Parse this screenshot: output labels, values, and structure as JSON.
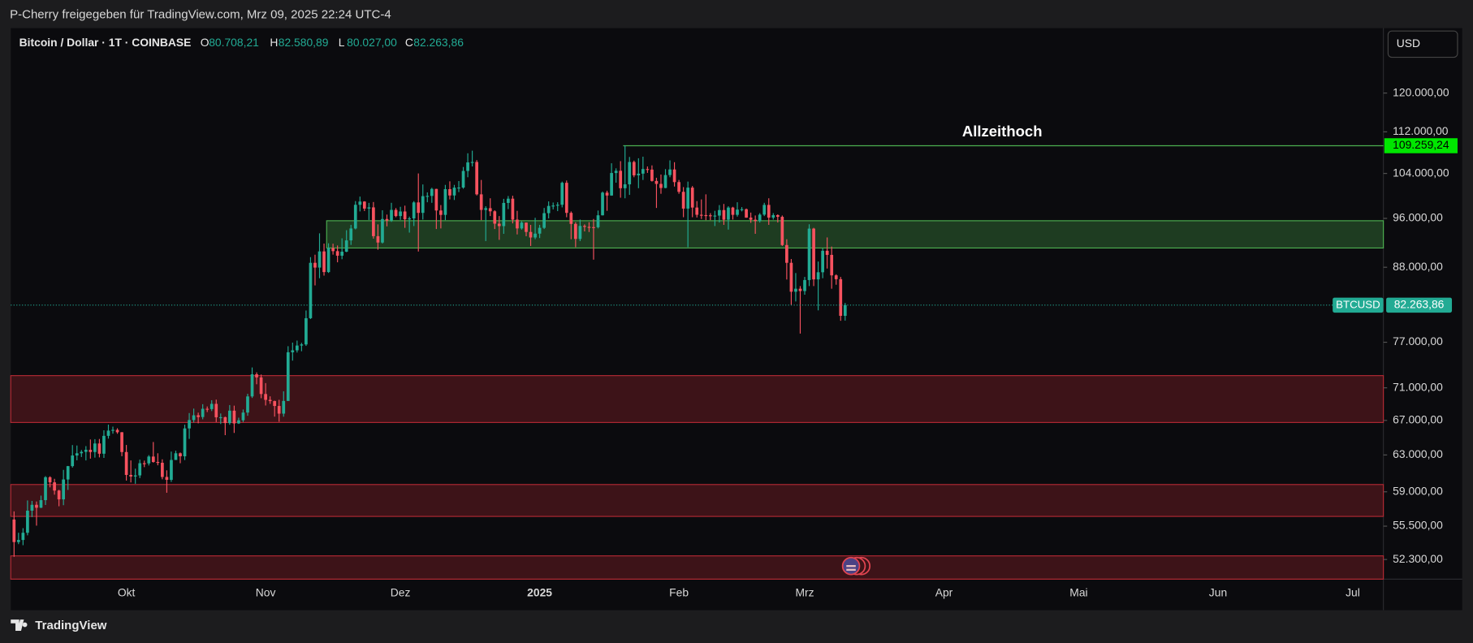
{
  "chart_data": {
    "type": "candlestick",
    "subtitle": "P-Cherry freigegeben für TradingView.com, Mrz 09, 2025 22:24 UTC-4",
    "title": "Bitcoin / Dollar · 1T · COINBASE",
    "ohlc": [
      {
        "key": "O",
        "label": "80.708,21"
      },
      {
        "key": "H",
        "label": "82.580,89"
      },
      {
        "key": "L",
        "label": "80.027,00"
      },
      {
        "key": "C",
        "label": "82.263,86"
      }
    ],
    "currency": "USD",
    "brand": "TradingView",
    "up_color": "#22ab94",
    "down_color": "#f7525f",
    "log_scale": true,
    "grid": false,
    "ylim": [
      50500,
      134700
    ],
    "yticks": [
      {
        "value": 120000,
        "label": "120.000,00"
      },
      {
        "value": 112000,
        "label": "112.000,00"
      },
      {
        "value": 104000,
        "label": "104.000,00"
      },
      {
        "value": 96000,
        "label": "96.000,00"
      },
      {
        "value": 88000,
        "label": "88.000,00"
      },
      {
        "value": 77000,
        "label": "77.000,00"
      },
      {
        "value": 71000,
        "label": "71.000,00"
      },
      {
        "value": 67000,
        "label": "67.000,00"
      },
      {
        "value": 63000,
        "label": "63.000,00"
      },
      {
        "value": 59000,
        "label": "59.000,00"
      },
      {
        "value": 55500,
        "label": "55.500,00"
      },
      {
        "value": 52300,
        "label": "52.300,00"
      }
    ],
    "x_labels": [
      "Okt",
      "Nov",
      "Dez",
      "2025",
      "Feb",
      "Mrz",
      "Apr",
      "Mai",
      "Jun",
      "Jul"
    ],
    "zones": [
      {
        "range": [
          91070,
          95600
        ],
        "color": "#4caf50"
      },
      {
        "range": [
          66750,
          72560
        ],
        "color": "#b22833"
      },
      {
        "range": [
          56470,
          59770
        ],
        "color": "#b22833"
      },
      {
        "range": [
          50500,
          52640
        ],
        "color": "#b22833"
      }
    ],
    "ath": {
      "value": 109259.24,
      "label": "109.259,24",
      "text": "Allzeithoch",
      "color": "#4caf50"
    },
    "last_price": {
      "value": 82263.86,
      "label": "82.263,86",
      "name": "BTCUSD"
    },
    "candles": [
      [
        56160,
        56980,
        52550,
        53950
      ],
      [
        53950,
        54850,
        53750,
        54150
      ],
      [
        54150,
        55300,
        53650,
        54850
      ],
      [
        54850,
        58100,
        54600,
        57050
      ],
      [
        57050,
        58050,
        56400,
        57650
      ],
      [
        57650,
        57990,
        55550,
        57350
      ],
      [
        57350,
        58600,
        57320,
        58130
      ],
      [
        58130,
        60670,
        57630,
        60550
      ],
      [
        60550,
        60650,
        59470,
        60000
      ],
      [
        60000,
        60380,
        58700,
        59130
      ],
      [
        59130,
        59210,
        57500,
        58210
      ],
      [
        58210,
        61350,
        57610,
        60310
      ],
      [
        60310,
        61780,
        59200,
        61760
      ],
      [
        61760,
        64120,
        61600,
        62940
      ],
      [
        62940,
        64070,
        62400,
        63190
      ],
      [
        63190,
        63560,
        62770,
        63350
      ],
      [
        63350,
        64000,
        62390,
        63580
      ],
      [
        63580,
        64760,
        62590,
        63330
      ],
      [
        63330,
        64800,
        62700,
        64300
      ],
      [
        64300,
        64820,
        62730,
        63140
      ],
      [
        63140,
        65830,
        62670,
        65180
      ],
      [
        65180,
        66500,
        64860,
        65790
      ],
      [
        65790,
        66260,
        65430,
        65880
      ],
      [
        65880,
        66070,
        65420,
        65600
      ],
      [
        65600,
        65620,
        62860,
        63330
      ],
      [
        63330,
        64130,
        60190,
        60800
      ],
      [
        60800,
        62390,
        59990,
        60630
      ],
      [
        60630,
        61480,
        59850,
        60750
      ],
      [
        60750,
        62480,
        60460,
        62080
      ],
      [
        62080,
        62370,
        61650,
        62060
      ],
      [
        62060,
        62980,
        61830,
        62820
      ],
      [
        62820,
        64470,
        62140,
        62220
      ],
      [
        62220,
        63190,
        61850,
        62130
      ],
      [
        62130,
        62510,
        60330,
        60580
      ],
      [
        60580,
        61300,
        58900,
        60270
      ],
      [
        60270,
        63380,
        60050,
        62440
      ],
      [
        62440,
        63480,
        62440,
        63190
      ],
      [
        63190,
        63280,
        62080,
        62850
      ],
      [
        62850,
        66490,
        62430,
        66050
      ],
      [
        66050,
        67880,
        64830,
        67040
      ],
      [
        67040,
        68420,
        66750,
        67610
      ],
      [
        67610,
        67930,
        66650,
        67400
      ],
      [
        67400,
        68960,
        67130,
        68400
      ],
      [
        68400,
        68680,
        68000,
        68360
      ],
      [
        68360,
        69450,
        68120,
        69000
      ],
      [
        69000,
        69520,
        66800,
        67370
      ],
      [
        67370,
        67830,
        66570,
        67380
      ],
      [
        67380,
        67450,
        65260,
        66680
      ],
      [
        66680,
        68850,
        66480,
        68170
      ],
      [
        68170,
        68780,
        65520,
        66640
      ],
      [
        66640,
        67320,
        66580,
        67010
      ],
      [
        67010,
        68310,
        66800,
        67940
      ],
      [
        67940,
        70250,
        67550,
        69920
      ],
      [
        69920,
        73620,
        69730,
        72730
      ],
      [
        72730,
        72980,
        71450,
        72330
      ],
      [
        72330,
        72700,
        69700,
        70220
      ],
      [
        70220,
        71600,
        68800,
        69490
      ],
      [
        69490,
        69930,
        69000,
        69340
      ],
      [
        69340,
        69400,
        67450,
        68740
      ],
      [
        68740,
        69500,
        66840,
        67810
      ],
      [
        67810,
        70560,
        67440,
        69360
      ],
      [
        69360,
        76460,
        69360,
        75640
      ],
      [
        75640,
        76950,
        74520,
        75900
      ],
      [
        75900,
        77230,
        75600,
        76550
      ],
      [
        76550,
        76920,
        75780,
        76700
      ],
      [
        76700,
        81480,
        76500,
        80370
      ],
      [
        80370,
        89600,
        80250,
        88700
      ],
      [
        88700,
        89990,
        85200,
        87950
      ],
      [
        87950,
        93480,
        86300,
        90520
      ],
      [
        90520,
        91790,
        86700,
        87250
      ],
      [
        87250,
        91840,
        87120,
        91060
      ],
      [
        91060,
        91770,
        90000,
        90560
      ],
      [
        90560,
        91480,
        88780,
        89830
      ],
      [
        89830,
        92650,
        89270,
        90470
      ],
      [
        90470,
        94000,
        90400,
        92310
      ],
      [
        92310,
        94900,
        91570,
        94290
      ],
      [
        94290,
        99000,
        94140,
        98350
      ],
      [
        98350,
        99800,
        97200,
        98920
      ],
      [
        98920,
        98980,
        97260,
        97690
      ],
      [
        97690,
        98690,
        95730,
        97900
      ],
      [
        97900,
        98840,
        92600,
        93010
      ],
      [
        93010,
        94980,
        90800,
        91960
      ],
      [
        91960,
        97400,
        91800,
        95890
      ],
      [
        95890,
        96650,
        94650,
        95640
      ],
      [
        95640,
        98700,
        95400,
        97460
      ],
      [
        97460,
        97780,
        96200,
        96400
      ],
      [
        96400,
        98000,
        95750,
        97190
      ],
      [
        97190,
        98200,
        94400,
        95850
      ],
      [
        95850,
        96300,
        93600,
        96000
      ],
      [
        96000,
        99000,
        94700,
        98770
      ],
      [
        98770,
        104000,
        90500,
        96950
      ],
      [
        96950,
        101980,
        95800,
        99880
      ],
      [
        99880,
        100550,
        98800,
        99920
      ],
      [
        99920,
        101380,
        98700,
        101170
      ],
      [
        101170,
        101200,
        94200,
        97360
      ],
      [
        97360,
        98300,
        94300,
        96600
      ],
      [
        96600,
        101900,
        95700,
        101130
      ],
      [
        101130,
        102550,
        99300,
        100000
      ],
      [
        100000,
        101900,
        99200,
        101400
      ],
      [
        101400,
        102600,
        100600,
        101420
      ],
      [
        101420,
        105200,
        101200,
        104460
      ],
      [
        104460,
        107800,
        103300,
        106060
      ],
      [
        106060,
        108300,
        105300,
        106140
      ],
      [
        106140,
        106500,
        100000,
        100200
      ],
      [
        100200,
        102800,
        95700,
        97460
      ],
      [
        97460,
        98100,
        92200,
        97760
      ],
      [
        97760,
        99500,
        96400,
        97220
      ],
      [
        97220,
        97400,
        94200,
        95100
      ],
      [
        95100,
        96400,
        92400,
        94690
      ],
      [
        94690,
        99400,
        93400,
        98680
      ],
      [
        98680,
        99900,
        97600,
        99430
      ],
      [
        99430,
        99950,
        95150,
        95790
      ],
      [
        95790,
        97300,
        93300,
        94300
      ],
      [
        94300,
        95500,
        94100,
        95280
      ],
      [
        95280,
        95300,
        93000,
        93710
      ],
      [
        93710,
        94900,
        91400,
        92790
      ],
      [
        92790,
        96100,
        92500,
        93430
      ],
      [
        93430,
        94900,
        92700,
        94400
      ],
      [
        94400,
        97800,
        94200,
        96900
      ],
      [
        96900,
        98950,
        96000,
        98150
      ],
      [
        98150,
        98750,
        97550,
        98220
      ],
      [
        98220,
        98800,
        97250,
        98360
      ],
      [
        98360,
        102500,
        97900,
        102280
      ],
      [
        102280,
        102700,
        96200,
        96950
      ],
      [
        96950,
        97200,
        92500,
        95060
      ],
      [
        95060,
        95350,
        91200,
        92550
      ],
      [
        92550,
        95800,
        92200,
        94720
      ],
      [
        94720,
        94980,
        93800,
        94560
      ],
      [
        94560,
        95350,
        93700,
        94520
      ],
      [
        94520,
        95900,
        89200,
        94500
      ],
      [
        94500,
        97350,
        94300,
        96530
      ],
      [
        96530,
        100700,
        96500,
        100500
      ],
      [
        100500,
        100850,
        97300,
        99990
      ],
      [
        99990,
        105900,
        99950,
        104080
      ],
      [
        104080,
        104950,
        102300,
        104490
      ],
      [
        104490,
        106300,
        99600,
        101300
      ],
      [
        101300,
        109300,
        99500,
        102000
      ],
      [
        102000,
        107100,
        100100,
        106140
      ],
      [
        106140,
        106400,
        103300,
        103650
      ],
      [
        103650,
        106850,
        101300,
        103960
      ],
      [
        103960,
        107150,
        102800,
        104820
      ],
      [
        104820,
        105300,
        104100,
        104710
      ],
      [
        104710,
        105500,
        102500,
        102620
      ],
      [
        102620,
        103200,
        97800,
        102080
      ],
      [
        102080,
        103800,
        100300,
        101340
      ],
      [
        101340,
        104800,
        101300,
        103700
      ],
      [
        103700,
        106450,
        103300,
        104740
      ],
      [
        104740,
        106100,
        101600,
        102410
      ],
      [
        102410,
        102800,
        100300,
        100650
      ],
      [
        100650,
        101500,
        96200,
        97690
      ],
      [
        97690,
        102500,
        91200,
        101400
      ],
      [
        101400,
        101700,
        96200,
        97870
      ],
      [
        97870,
        99000,
        96150,
        96620
      ],
      [
        96620,
        99300,
        95900,
        96560
      ],
      [
        96560,
        100200,
        95700,
        96530
      ],
      [
        96530,
        96900,
        95700,
        96460
      ],
      [
        96460,
        97300,
        94700,
        96480
      ],
      [
        96480,
        98300,
        95300,
        97430
      ],
      [
        97430,
        98500,
        94900,
        95780
      ],
      [
        95780,
        98100,
        94100,
        97870
      ],
      [
        97870,
        98000,
        95800,
        96610
      ],
      [
        96610,
        98800,
        96300,
        97510
      ],
      [
        97510,
        97950,
        97200,
        97580
      ],
      [
        97580,
        97700,
        96100,
        96130
      ],
      [
        96130,
        97000,
        95250,
        95770
      ],
      [
        95770,
        96500,
        93400,
        95540
      ],
      [
        95540,
        96900,
        95300,
        96640
      ],
      [
        96640,
        98700,
        96400,
        98330
      ],
      [
        98330,
        99500,
        94900,
        96130
      ],
      [
        96130,
        96900,
        95800,
        96560
      ],
      [
        96560,
        96700,
        95300,
        96270
      ],
      [
        96270,
        96500,
        91400,
        91550
      ],
      [
        91550,
        92500,
        86100,
        88700
      ],
      [
        88700,
        89300,
        82300,
        84250
      ],
      [
        84250,
        87100,
        82800,
        84700
      ],
      [
        84700,
        85100,
        78200,
        84350
      ],
      [
        84350,
        86500,
        83800,
        86020
      ],
      [
        86020,
        95000,
        85100,
        94270
      ],
      [
        94270,
        94400,
        85100,
        86120
      ],
      [
        86120,
        88900,
        81500,
        87220
      ],
      [
        87220,
        91000,
        86300,
        90620
      ],
      [
        90620,
        92800,
        87800,
        89960
      ],
      [
        89960,
        91300,
        84700,
        86740
      ],
      [
        86740,
        86900,
        85300,
        86150
      ],
      [
        86150,
        86500,
        80000,
        80708.21
      ],
      [
        80708.21,
        82580.89,
        80027.0,
        82263.86
      ]
    ]
  }
}
